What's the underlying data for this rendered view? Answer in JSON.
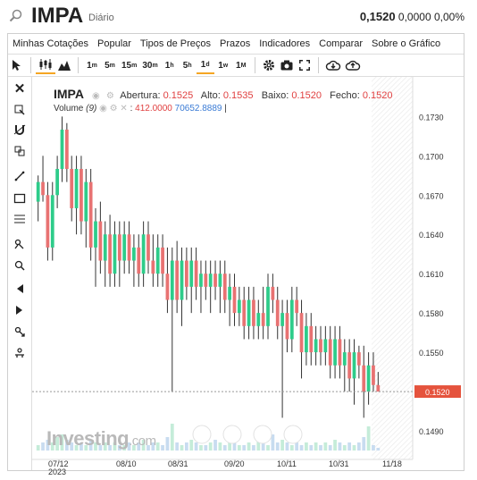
{
  "header": {
    "ticker": "IMPA",
    "period": "Diário",
    "last": "0,1520",
    "change": "0,0000",
    "change_pct": "0,00%"
  },
  "menu": [
    "Minhas Cotações",
    "Popular",
    "Tipos de Preços",
    "Prazos",
    "Indicadores",
    "Comparar",
    "Sobre o Gráfico"
  ],
  "toolbar": {
    "timeframes": [
      {
        "n": "1",
        "u": "m"
      },
      {
        "n": "5",
        "u": "m"
      },
      {
        "n": "15",
        "u": "m"
      },
      {
        "n": "30",
        "u": "m"
      },
      {
        "n": "1",
        "u": "h"
      },
      {
        "n": "5",
        "u": "h"
      },
      {
        "n": "1",
        "u": "d"
      },
      {
        "n": "1",
        "u": "w"
      },
      {
        "n": "1",
        "u": "M"
      }
    ],
    "active_timeframe": "1d"
  },
  "legend": {
    "symbol": "IMPA",
    "open_label": "Abertura:",
    "open": "0.1525",
    "high_label": "Alto:",
    "high": "0.1535",
    "low_label": "Baixo:",
    "low": "0.1520",
    "close_label": "Fecho:",
    "close": "0.1520",
    "volume_label": "Volume",
    "volume_period": "(9)",
    "volume_value": "412.0000",
    "volume_ma": "70652.8889"
  },
  "watermark": {
    "brand": "Investing",
    "suffix": ".com"
  },
  "bottom_text": "",
  "colors": {
    "up": "#2ecc8a",
    "down": "#e87272",
    "current": "#e5533d",
    "volume_bar": "#c8dcf0"
  },
  "chart_data": {
    "type": "candlestick",
    "ylim": [
      0.1475,
      0.1748
    ],
    "yticks": [
      "0.1730",
      "0.1700",
      "0.1670",
      "0.1640",
      "0.1610",
      "0.1580",
      "0.1550",
      "0.1490"
    ],
    "xticks": [
      "07/12\n2023",
      "08/10",
      "08/31",
      "09/20",
      "10/11",
      "10/31",
      "11/18"
    ],
    "current_price": "0.1520",
    "candles": [
      [
        0.1665,
        0.1685,
        0.165,
        0.168
      ],
      [
        0.168,
        0.17,
        0.1665,
        0.167
      ],
      [
        0.167,
        0.168,
        0.162,
        0.163
      ],
      [
        0.163,
        0.168,
        0.162,
        0.167
      ],
      [
        0.167,
        0.17,
        0.166,
        0.169
      ],
      [
        0.169,
        0.173,
        0.168,
        0.172
      ],
      [
        0.172,
        0.1725,
        0.168,
        0.169
      ],
      [
        0.169,
        0.17,
        0.165,
        0.166
      ],
      [
        0.166,
        0.17,
        0.164,
        0.169
      ],
      [
        0.169,
        0.17,
        0.164,
        0.165
      ],
      [
        0.165,
        0.169,
        0.163,
        0.168
      ],
      [
        0.168,
        0.169,
        0.162,
        0.163
      ],
      [
        0.163,
        0.166,
        0.16,
        0.165
      ],
      [
        0.165,
        0.1665,
        0.161,
        0.162
      ],
      [
        0.162,
        0.165,
        0.16,
        0.164
      ],
      [
        0.164,
        0.1655,
        0.16,
        0.161
      ],
      [
        0.161,
        0.165,
        0.16,
        0.164
      ],
      [
        0.164,
        0.165,
        0.16,
        0.162
      ],
      [
        0.162,
        0.165,
        0.161,
        0.164
      ],
      [
        0.164,
        0.165,
        0.161,
        0.162
      ],
      [
        0.162,
        0.164,
        0.16,
        0.163
      ],
      [
        0.163,
        0.164,
        0.16,
        0.161
      ],
      [
        0.161,
        0.165,
        0.16,
        0.164
      ],
      [
        0.164,
        0.165,
        0.161,
        0.162
      ],
      [
        0.162,
        0.164,
        0.16,
        0.161
      ],
      [
        0.161,
        0.164,
        0.16,
        0.163
      ],
      [
        0.163,
        0.164,
        0.16,
        0.161
      ],
      [
        0.161,
        0.163,
        0.158,
        0.159
      ],
      [
        0.159,
        0.163,
        0.152,
        0.162
      ],
      [
        0.162,
        0.1635,
        0.158,
        0.159
      ],
      [
        0.159,
        0.163,
        0.157,
        0.162
      ],
      [
        0.162,
        0.163,
        0.159,
        0.16
      ],
      [
        0.16,
        0.163,
        0.158,
        0.162
      ],
      [
        0.162,
        0.163,
        0.159,
        0.16
      ],
      [
        0.16,
        0.162,
        0.158,
        0.161
      ],
      [
        0.161,
        0.162,
        0.159,
        0.16
      ],
      [
        0.16,
        0.162,
        0.158,
        0.161
      ],
      [
        0.161,
        0.162,
        0.159,
        0.16
      ],
      [
        0.16,
        0.162,
        0.158,
        0.161
      ],
      [
        0.161,
        0.162,
        0.158,
        0.159
      ],
      [
        0.159,
        0.161,
        0.157,
        0.16
      ],
      [
        0.16,
        0.161,
        0.157,
        0.158
      ],
      [
        0.158,
        0.16,
        0.157,
        0.159
      ],
      [
        0.159,
        0.16,
        0.156,
        0.157
      ],
      [
        0.157,
        0.16,
        0.156,
        0.159
      ],
      [
        0.159,
        0.16,
        0.156,
        0.157
      ],
      [
        0.157,
        0.159,
        0.156,
        0.158
      ],
      [
        0.158,
        0.16,
        0.156,
        0.157
      ],
      [
        0.157,
        0.161,
        0.156,
        0.16
      ],
      [
        0.16,
        0.161,
        0.158,
        0.159
      ],
      [
        0.159,
        0.16,
        0.156,
        0.157
      ],
      [
        0.157,
        0.159,
        0.15,
        0.158
      ],
      [
        0.158,
        0.159,
        0.155,
        0.156
      ],
      [
        0.156,
        0.16,
        0.155,
        0.159
      ],
      [
        0.159,
        0.16,
        0.157,
        0.158
      ],
      [
        0.158,
        0.159,
        0.153,
        0.155
      ],
      [
        0.155,
        0.158,
        0.154,
        0.157
      ],
      [
        0.157,
        0.158,
        0.154,
        0.155
      ],
      [
        0.155,
        0.157,
        0.154,
        0.156
      ],
      [
        0.156,
        0.157,
        0.154,
        0.155
      ],
      [
        0.155,
        0.157,
        0.154,
        0.156
      ],
      [
        0.156,
        0.157,
        0.153,
        0.154
      ],
      [
        0.154,
        0.157,
        0.153,
        0.156
      ],
      [
        0.156,
        0.157,
        0.153,
        0.154
      ],
      [
        0.154,
        0.156,
        0.152,
        0.155
      ],
      [
        0.155,
        0.156,
        0.152,
        0.153
      ],
      [
        0.153,
        0.156,
        0.151,
        0.155
      ],
      [
        0.155,
        0.1555,
        0.153,
        0.154
      ],
      [
        0.154,
        0.1555,
        0.15,
        0.152
      ],
      [
        0.152,
        0.155,
        0.151,
        0.154
      ],
      [
        0.154,
        0.155,
        0.152,
        0.1525
      ],
      [
        0.1525,
        0.1535,
        0.152,
        0.152
      ]
    ],
    "volumes": [
      0.2,
      0.3,
      0.4,
      0.3,
      0.5,
      0.6,
      0.4,
      0.3,
      0.2,
      0.3,
      0.2,
      0.4,
      0.3,
      0.2,
      0.3,
      0.2,
      0.3,
      0.2,
      0.2,
      0.3,
      0.2,
      0.3,
      0.4,
      0.2,
      0.3,
      0.3,
      0.2,
      0.5,
      1.0,
      0.3,
      0.2,
      0.3,
      0.4,
      0.3,
      0.2,
      0.2,
      0.3,
      0.4,
      0.3,
      0.2,
      0.5,
      0.3,
      0.2,
      0.2,
      0.3,
      0.2,
      0.4,
      0.3,
      0.2,
      0.6,
      0.3,
      0.4,
      0.3,
      0.2,
      0.3,
      0.2,
      0.3,
      0.2,
      0.3,
      0.2,
      0.3,
      0.2,
      0.4,
      0.3,
      0.2,
      0.3,
      0.2,
      0.3,
      0.5,
      0.9,
      0.2,
      0.1
    ]
  }
}
